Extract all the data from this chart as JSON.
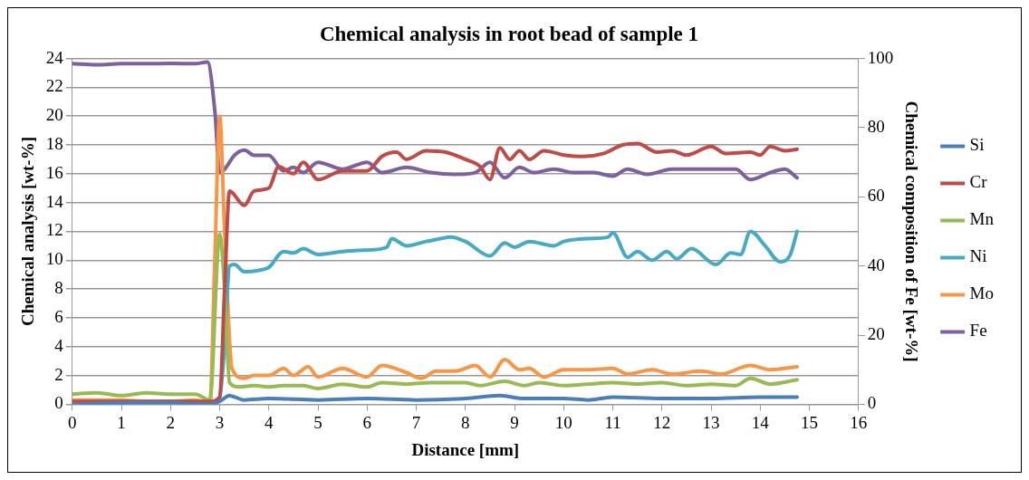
{
  "chart_data": {
    "type": "line",
    "title": "Chemical analysis in root bead of sample 1",
    "xlabel": "Distance [mm]",
    "ylabel": "Chemical analysis [wt-%]",
    "y2label": "Chemical composition of Fe [wt-%]",
    "xlim": [
      0,
      16
    ],
    "xticks": [
      0,
      1,
      2,
      3,
      4,
      5,
      6,
      7,
      8,
      9,
      10,
      11,
      12,
      13,
      14,
      15,
      16
    ],
    "ylim": [
      0,
      24
    ],
    "yticks": [
      0,
      2,
      4,
      6,
      8,
      10,
      12,
      14,
      16,
      18,
      20,
      22,
      24
    ],
    "y2lim": [
      0,
      100
    ],
    "y2ticks": [
      0,
      20,
      40,
      60,
      80,
      100
    ],
    "grid": "y",
    "legend": "right",
    "marker": "none",
    "line_style": "solid",
    "series": [
      {
        "name": "Si",
        "color": "#4a7ebb",
        "x": [
          0,
          1,
          2,
          2.8,
          3,
          3.2,
          3.5,
          4,
          5,
          6,
          7,
          8,
          8.7,
          9.2,
          10,
          10.5,
          11,
          12,
          13,
          14,
          14.75
        ],
        "values": [
          0,
          0.1,
          0.1,
          0,
          0.2,
          0.6,
          0.3,
          0.4,
          0.3,
          0.4,
          0.3,
          0.4,
          0.6,
          0.4,
          0.4,
          0.3,
          0.5,
          0.4,
          0.4,
          0.5,
          0.5
        ]
      },
      {
        "name": "Cr",
        "color": "#be4b48",
        "x": [
          0,
          1,
          2,
          2.8,
          3,
          3.1,
          3.2,
          3.5,
          3.7,
          4,
          4.2,
          4.5,
          4.7,
          5,
          5.5,
          6,
          6.3,
          6.6,
          6.8,
          7.2,
          7.6,
          8,
          8.3,
          8.5,
          8.7,
          8.9,
          9.1,
          9.3,
          9.6,
          10,
          10.4,
          10.8,
          11.2,
          11.5,
          11.9,
          12.2,
          12.5,
          13,
          13.3,
          13.8,
          14,
          14.2,
          14.5,
          14.75
        ],
        "values": [
          0.2,
          0.2,
          0.2,
          0.2,
          0.5,
          8,
          14.8,
          13.8,
          14.8,
          15,
          16.5,
          16,
          16.8,
          15.6,
          16.2,
          16.2,
          17.2,
          17.5,
          17,
          17.6,
          17.5,
          17,
          16.5,
          15.6,
          17.8,
          17,
          17.6,
          17,
          17.6,
          17.3,
          17.2,
          17.4,
          18,
          18.1,
          17.5,
          17.6,
          17.3,
          17.9,
          17.4,
          17.5,
          17.3,
          17.9,
          17.6,
          17.7
        ]
      },
      {
        "name": "Mn",
        "color": "#98b954",
        "x": [
          0,
          0.5,
          1,
          1.5,
          2,
          2.5,
          2.8,
          3,
          3.1,
          3.2,
          3.4,
          3.7,
          4,
          4.3,
          4.7,
          5,
          5.5,
          6,
          6.3,
          6.8,
          7.3,
          8,
          8.3,
          8.8,
          9.2,
          9.5,
          10,
          10.5,
          11,
          11.5,
          12,
          12.5,
          13,
          13.5,
          13.8,
          14.2,
          14.75
        ],
        "values": [
          0.7,
          0.8,
          0.6,
          0.8,
          0.7,
          0.7,
          0.3,
          11.8,
          8,
          1.5,
          1.2,
          1.3,
          1.2,
          1.3,
          1.3,
          1.1,
          1.4,
          1.2,
          1.5,
          1.4,
          1.5,
          1.5,
          1.3,
          1.6,
          1.3,
          1.5,
          1.3,
          1.4,
          1.5,
          1.4,
          1.5,
          1.3,
          1.4,
          1.3,
          1.8,
          1.4,
          1.7
        ]
      },
      {
        "name": "Ni",
        "color": "#46aac5",
        "x": [
          0,
          1,
          2,
          2.9,
          3,
          3.1,
          3.2,
          3.3,
          3.5,
          3.8,
          4,
          4.3,
          4.5,
          4.7,
          5,
          5.5,
          6,
          6.4,
          6.5,
          6.8,
          7.2,
          7.5,
          7.7,
          8,
          8.5,
          8.8,
          9,
          9.3,
          9.8,
          10,
          10.5,
          10.9,
          11,
          11.3,
          11.5,
          11.8,
          12.1,
          12.3,
          12.6,
          13.1,
          13.4,
          13.6,
          13.8,
          14.1,
          14.4,
          14.6,
          14.75
        ],
        "values": [
          0,
          0.1,
          0.2,
          0.1,
          0.5,
          4,
          9.6,
          9.7,
          9.2,
          9.3,
          9.5,
          10.6,
          10.5,
          10.8,
          10.4,
          10.6,
          10.7,
          10.9,
          11.5,
          11,
          11.3,
          11.5,
          11.6,
          11.3,
          10.3,
          11.2,
          10.9,
          11.3,
          11,
          11.3,
          11.5,
          11.6,
          11.9,
          10.2,
          10.6,
          10,
          10.6,
          10.1,
          10.8,
          9.7,
          10.5,
          10.4,
          12,
          11,
          9.9,
          10.3,
          12
        ]
      },
      {
        "name": "Mo",
        "color": "#f79646",
        "x": [
          0,
          1,
          1.5,
          2,
          2.5,
          2.8,
          2.9,
          3,
          3.1,
          3.25,
          3.5,
          3.7,
          4,
          4.3,
          4.5,
          4.8,
          5,
          5.5,
          6,
          6.3,
          6.8,
          7.1,
          7.4,
          7.8,
          8.2,
          8.5,
          8.8,
          9.1,
          9.3,
          9.6,
          10,
          10.5,
          11,
          11.3,
          11.8,
          12.2,
          12.8,
          13.2,
          13.8,
          14.2,
          14.75
        ],
        "values": [
          0.3,
          0.3,
          0.2,
          0.2,
          0.3,
          0.1,
          10,
          20,
          12,
          2.5,
          1.8,
          2,
          2,
          2.5,
          2,
          2.6,
          1.9,
          2.5,
          1.9,
          2.7,
          2.2,
          1.8,
          2.3,
          2.3,
          2.7,
          1.9,
          3.1,
          2.4,
          2.5,
          1.9,
          2.4,
          2.4,
          2.5,
          2.1,
          2.4,
          2.1,
          2.3,
          2.1,
          2.7,
          2.4,
          2.6
        ]
      },
      {
        "name": "Fe",
        "color": "#7d60a0",
        "axis": "y2",
        "x": [
          0,
          0.5,
          1,
          1.5,
          2,
          2.5,
          2.75,
          2.9,
          3,
          3.1,
          3.3,
          3.5,
          3.7,
          4,
          4.3,
          4.5,
          4.7,
          5,
          5.5,
          6,
          6.3,
          6.8,
          7.3,
          7.8,
          8.2,
          8.5,
          8.8,
          9.1,
          9.4,
          9.8,
          10.2,
          10.6,
          11,
          11.3,
          11.7,
          12.2,
          12.7,
          13.2,
          13.5,
          13.8,
          14.2,
          14.5,
          14.75
        ],
        "values": [
          98.5,
          98.2,
          98.5,
          98.5,
          98.6,
          98.5,
          99,
          85,
          67,
          68,
          72,
          73.5,
          72,
          72,
          67.5,
          68.5,
          67,
          70,
          68,
          70,
          67,
          68.5,
          67,
          66.5,
          67,
          70,
          65.5,
          68.5,
          67,
          68,
          67,
          67,
          66,
          68,
          66.5,
          68,
          68,
          68,
          68,
          65,
          67,
          68,
          65.5
        ]
      }
    ]
  }
}
